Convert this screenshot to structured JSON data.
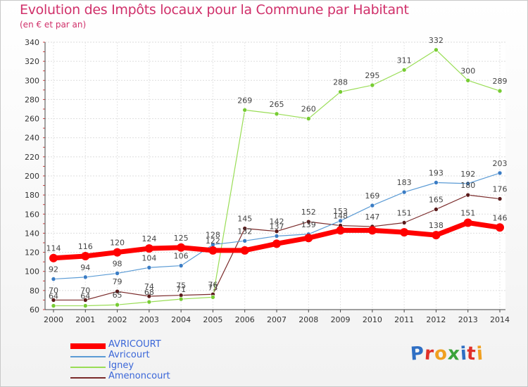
{
  "header": {
    "title": "Evolution des Impôts locaux pour la Commune par Habitant",
    "subtitle": "(en € et par an)"
  },
  "logo": {
    "text": "Proxiti",
    "letters": [
      "P",
      "r",
      "o",
      "x",
      "i",
      "t",
      "i"
    ],
    "colors": [
      "#2f6fc4",
      "#e0302a",
      "#f0a020",
      "#3aa33a",
      "#2f6fc4",
      "#e0302a",
      "#f0a020"
    ]
  },
  "chart_data": {
    "type": "line",
    "title": "Evolution des Impôts locaux pour la Commune par Habitant",
    "subtitle": "(en € et par an)",
    "x": [
      "2000",
      "2001",
      "2002",
      "2003",
      "2004",
      "2005",
      "2006",
      "2007",
      "2008",
      "2009",
      "2010",
      "2011",
      "2012",
      "2013",
      "2014"
    ],
    "ylim": [
      60,
      340
    ],
    "yticks": [
      60,
      80,
      100,
      120,
      140,
      160,
      180,
      200,
      220,
      240,
      260,
      280,
      300,
      320,
      340
    ],
    "grid": true,
    "legend_position": "bottom-left",
    "series": [
      {
        "name": "AVRICOURT",
        "color": "#ff0000",
        "width": 7,
        "marker_color": "#ff0000",
        "values": [
          114,
          116,
          120,
          124,
          125,
          122,
          122,
          129,
          135,
          143,
          143,
          141,
          138,
          151,
          146
        ],
        "labels": [
          "114",
          "116",
          "120",
          "124",
          "125",
          "122",
          "",
          "",
          "",
          "",
          "",
          "",
          "138",
          "151",
          "146"
        ]
      },
      {
        "name": "Avricourt",
        "color": "#5b9bd5",
        "width": 1.2,
        "marker_color": "#3a7cc4",
        "values": [
          92,
          94,
          98,
          104,
          106,
          128,
          132,
          137,
          139,
          153,
          169,
          183,
          193,
          192,
          203
        ],
        "labels": [
          "92",
          "94",
          "98",
          "104",
          "106",
          "128",
          "132",
          "137",
          "139",
          "153",
          "169",
          "183",
          "193",
          "192",
          "203"
        ]
      },
      {
        "name": "Igney",
        "color": "#99dd55",
        "width": 1.2,
        "marker_color": "#77cc33",
        "values": [
          64,
          64,
          65,
          68,
          71,
          73,
          269,
          265,
          260,
          288,
          295,
          311,
          332,
          300,
          289
        ],
        "labels": [
          "64",
          "64",
          "65",
          "68",
          "71",
          "73",
          "269",
          "265",
          "260",
          "288",
          "295",
          "311",
          "332",
          "300",
          "289"
        ]
      },
      {
        "name": "Amenoncourt",
        "color": "#7a2a2a",
        "width": 1.2,
        "marker_color": "#5a1a1a",
        "values": [
          70,
          70,
          79,
          74,
          75,
          76,
          145,
          142,
          152,
          148,
          147,
          151,
          165,
          180,
          176
        ],
        "labels": [
          "70",
          "70",
          "79",
          "74",
          "75",
          "76",
          "145",
          "142",
          "152",
          "148",
          "147",
          "151",
          "165",
          "180",
          "176"
        ]
      }
    ]
  }
}
